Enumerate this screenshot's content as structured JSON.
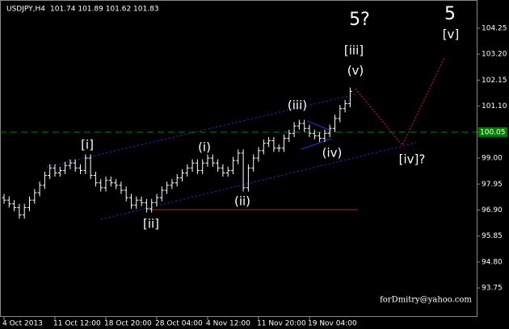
{
  "chart_data": {
    "type": "ohlc",
    "title": "USDJPY,H4",
    "quote": "101.74 101.89 101.62 101.83",
    "categories": [
      "4 Oct 2013",
      null,
      null,
      null,
      null,
      null,
      null,
      null,
      null,
      null,
      "11 Oct 12:00",
      null,
      null,
      null,
      null,
      null,
      null,
      null,
      null,
      null,
      "18 Oct 20:00",
      null,
      null,
      null,
      null,
      null,
      null,
      null,
      null,
      null,
      "28 Oct 04:00",
      null,
      null,
      null,
      null,
      null,
      null,
      null,
      null,
      null,
      "4 Nov 12:00",
      null,
      null,
      null,
      null,
      null,
      null,
      null,
      null,
      null,
      "11 Nov 20:00",
      null,
      null,
      null,
      null,
      null,
      null,
      null,
      null,
      null,
      "19 Nov 04:00",
      null,
      null,
      null,
      null,
      null,
      null,
      null,
      null
    ],
    "open": [
      97.4,
      97.3,
      97.15,
      97.0,
      96.7,
      97.0,
      97.3,
      97.6,
      97.9,
      98.3,
      98.6,
      98.4,
      98.5,
      98.7,
      98.8,
      98.6,
      98.5,
      99.0,
      98.3,
      98.0,
      97.8,
      98.1,
      98.0,
      97.9,
      97.7,
      97.4,
      97.1,
      97.3,
      97.2,
      96.95,
      97.2,
      97.4,
      97.7,
      97.9,
      98.0,
      98.2,
      98.4,
      98.6,
      98.8,
      98.5,
      98.8,
      99.0,
      98.8,
      98.6,
      98.4,
      98.5,
      98.9,
      99.2,
      97.8,
      98.6,
      99.0,
      99.3,
      99.6,
      99.7,
      99.4,
      99.4,
      99.8,
      100.0,
      100.3,
      100.4,
      100.2,
      100.0,
      99.9,
      99.8,
      100.0,
      100.2,
      100.6,
      101.0,
      101.2
    ],
    "high": [
      97.55,
      97.45,
      97.3,
      97.15,
      97.15,
      97.45,
      97.75,
      98.05,
      98.45,
      98.75,
      98.75,
      98.65,
      98.85,
      98.95,
      98.95,
      98.75,
      99.15,
      99.15,
      98.45,
      98.15,
      98.25,
      98.25,
      98.15,
      98.05,
      97.85,
      97.55,
      97.45,
      97.45,
      97.35,
      97.35,
      97.55,
      97.85,
      98.05,
      98.15,
      98.35,
      98.55,
      98.75,
      98.95,
      98.95,
      98.95,
      99.15,
      99.15,
      98.95,
      98.75,
      98.65,
      99.05,
      99.35,
      99.35,
      98.75,
      99.15,
      99.45,
      99.75,
      99.85,
      99.85,
      99.55,
      99.95,
      100.15,
      100.45,
      100.55,
      100.55,
      100.35,
      100.15,
      100.05,
      100.15,
      100.35,
      100.75,
      101.15,
      101.35,
      101.85
    ],
    "low": [
      97.15,
      97.0,
      96.85,
      96.55,
      96.55,
      96.85,
      97.15,
      97.45,
      97.75,
      98.15,
      98.25,
      98.25,
      98.35,
      98.55,
      98.45,
      98.35,
      98.35,
      98.15,
      97.85,
      97.65,
      97.65,
      97.85,
      97.75,
      97.55,
      97.25,
      96.95,
      96.95,
      97.05,
      96.8,
      96.8,
      97.05,
      97.25,
      97.55,
      97.75,
      97.85,
      98.05,
      98.25,
      98.45,
      98.35,
      98.35,
      98.65,
      98.65,
      98.45,
      98.25,
      98.25,
      98.35,
      98.75,
      97.65,
      97.65,
      98.45,
      98.85,
      99.15,
      99.45,
      99.25,
      99.25,
      99.25,
      99.65,
      99.85,
      100.15,
      100.05,
      99.85,
      99.75,
      99.65,
      99.65,
      99.85,
      100.05,
      100.45,
      100.85,
      101.05
    ],
    "close": [
      97.3,
      97.15,
      97.0,
      96.7,
      97.0,
      97.3,
      97.6,
      97.9,
      98.3,
      98.6,
      98.4,
      98.5,
      98.7,
      98.8,
      98.6,
      98.5,
      99.0,
      98.3,
      98.0,
      97.8,
      98.1,
      98.0,
      97.9,
      97.7,
      97.4,
      97.1,
      97.3,
      97.2,
      96.95,
      97.2,
      97.4,
      97.7,
      97.9,
      98.0,
      98.2,
      98.4,
      98.6,
      98.8,
      98.5,
      98.8,
      99.0,
      98.8,
      98.6,
      98.4,
      98.5,
      98.9,
      99.2,
      97.8,
      98.6,
      99.0,
      99.3,
      99.6,
      99.7,
      99.4,
      99.4,
      99.8,
      100.0,
      100.3,
      100.4,
      100.2,
      100.0,
      99.9,
      99.8,
      100.0,
      100.2,
      100.6,
      101.0,
      101.2,
      101.7
    ],
    "color": "#ffffff",
    "ylim": [
      92.58,
      105.39
    ],
    "yticks": [
      104.25,
      {
        "value": 103.2,
        "label": "103.20"
      },
      102.15,
      {
        "value": 101.1,
        "label": "101.10"
      },
      100.05,
      {
        "value": 99.0,
        "label": "99.00"
      },
      97.95,
      {
        "value": 96.9,
        "label": "96.90"
      },
      95.85,
      {
        "value": 94.8,
        "label": "94.80"
      },
      93.75
    ],
    "level": {
      "value": 100.05,
      "label": "100.05",
      "color": "#008000"
    },
    "annotations": [
      {
        "text": "[i]",
        "color": "#3a9a2a"
      },
      {
        "text": "[ii]",
        "color": "#3a9a2a"
      },
      {
        "text": "(i)",
        "color": "#3b3bd0"
      },
      {
        "text": "(ii)",
        "color": "#3b3bd0"
      },
      {
        "text": "(iii)",
        "color": "#3b3bd0"
      },
      {
        "text": "(iv)",
        "color": "#3b3bd0"
      },
      {
        "text": "(v)",
        "color": "#3b3bd0"
      },
      {
        "text": "[iii]",
        "color": "#3a9a2a"
      },
      {
        "text": "[iv]?",
        "color": "#3a9a2a"
      },
      {
        "text": "[v]",
        "color": "#3a9a2a"
      },
      {
        "text": "5",
        "color": "#a0282a"
      },
      {
        "text": "5?",
        "color": "#a0a0a0"
      }
    ],
    "watermark": "forDmitry@yahoo.com"
  }
}
